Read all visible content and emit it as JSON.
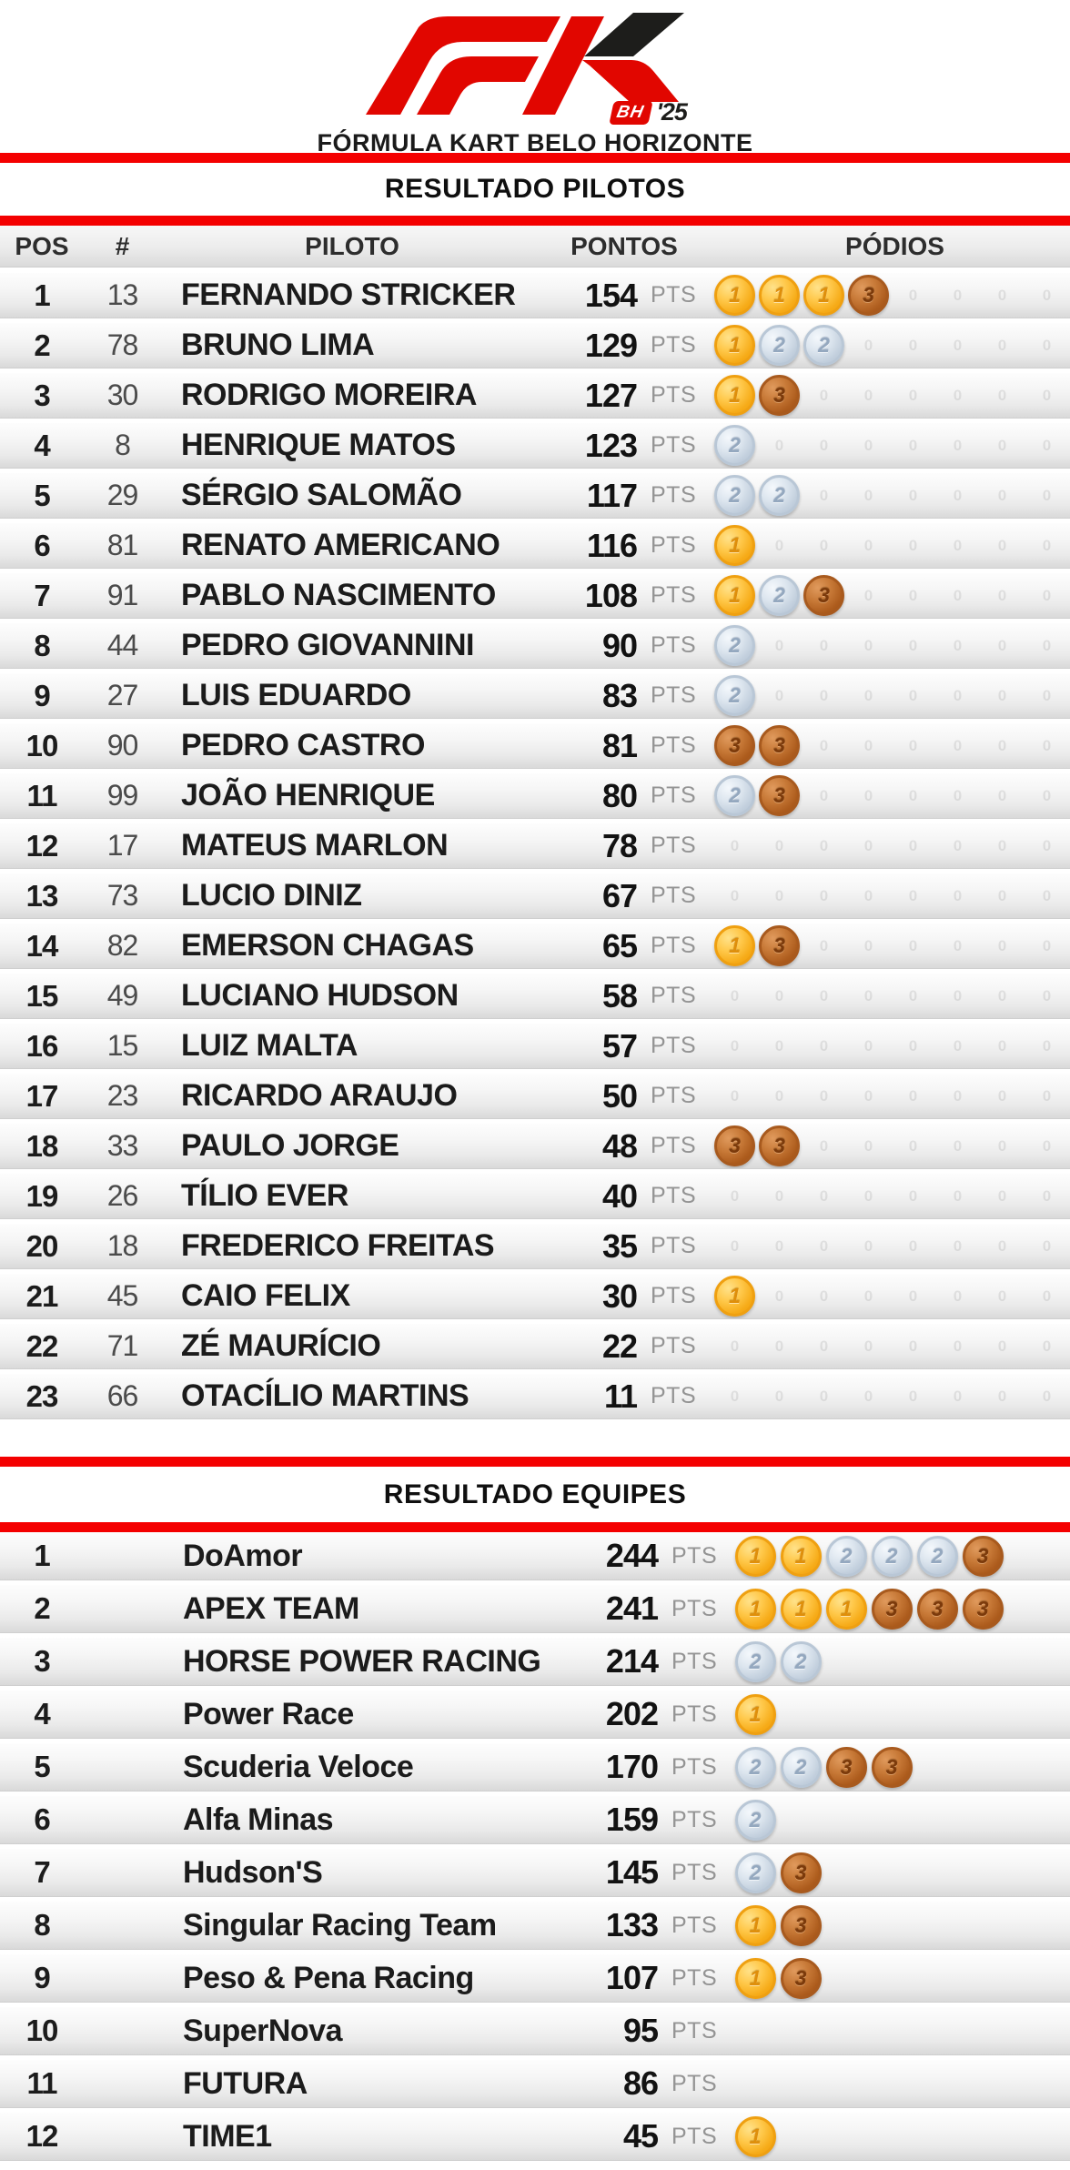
{
  "logo": {
    "bh_badge": "BH",
    "year": "'25",
    "wordmark": "FÓRMULA KART BELO HORIZONTE"
  },
  "colors": {
    "accent_red": "#F40000",
    "logo_red": "#E10600",
    "logo_black": "#1D1D1B",
    "gold": "#F6AB18",
    "silver": "#C2CFDD",
    "bronze": "#AD5C1D"
  },
  "pilots": {
    "title": "RESULTADO PILOTOS",
    "columns": {
      "pos": "POS",
      "num": "#",
      "name": "PILOTO",
      "points": "PONTOS",
      "podiums": "PÓDIOS"
    },
    "pts_label": "PTS",
    "podium_slots": 8,
    "ghost_glyph": "0",
    "rows": [
      {
        "pos": "1",
        "num": "13",
        "name": "FERNANDO STRICKER",
        "points": "154",
        "medals": [
          1,
          1,
          1,
          3
        ]
      },
      {
        "pos": "2",
        "num": "78",
        "name": "BRUNO LIMA",
        "points": "129",
        "medals": [
          1,
          2,
          2
        ]
      },
      {
        "pos": "3",
        "num": "30",
        "name": "RODRIGO MOREIRA",
        "points": "127",
        "medals": [
          1,
          3
        ]
      },
      {
        "pos": "4",
        "num": "8",
        "name": "HENRIQUE MATOS",
        "points": "123",
        "medals": [
          2
        ]
      },
      {
        "pos": "5",
        "num": "29",
        "name": "SÉRGIO SALOMÃO",
        "points": "117",
        "medals": [
          2,
          2
        ]
      },
      {
        "pos": "6",
        "num": "81",
        "name": "RENATO AMERICANO",
        "points": "116",
        "medals": [
          1
        ]
      },
      {
        "pos": "7",
        "num": "91",
        "name": "PABLO NASCIMENTO",
        "points": "108",
        "medals": [
          1,
          2,
          3
        ]
      },
      {
        "pos": "8",
        "num": "44",
        "name": "PEDRO GIOVANNINI",
        "points": "90",
        "medals": [
          2
        ]
      },
      {
        "pos": "9",
        "num": "27",
        "name": "LUIS EDUARDO",
        "points": "83",
        "medals": [
          2
        ]
      },
      {
        "pos": "10",
        "num": "90",
        "name": "PEDRO CASTRO",
        "points": "81",
        "medals": [
          3,
          3
        ]
      },
      {
        "pos": "11",
        "num": "99",
        "name": "JOÃO HENRIQUE",
        "points": "80",
        "medals": [
          2,
          3
        ]
      },
      {
        "pos": "12",
        "num": "17",
        "name": "MATEUS MARLON",
        "points": "78",
        "medals": []
      },
      {
        "pos": "13",
        "num": "73",
        "name": "LUCIO DINIZ",
        "points": "67",
        "medals": []
      },
      {
        "pos": "14",
        "num": "82",
        "name": "EMERSON CHAGAS",
        "points": "65",
        "medals": [
          1,
          3
        ]
      },
      {
        "pos": "15",
        "num": "49",
        "name": "LUCIANO HUDSON",
        "points": "58",
        "medals": []
      },
      {
        "pos": "16",
        "num": "15",
        "name": "LUIZ MALTA",
        "points": "57",
        "medals": []
      },
      {
        "pos": "17",
        "num": "23",
        "name": "RICARDO ARAUJO",
        "points": "50",
        "medals": []
      },
      {
        "pos": "18",
        "num": "33",
        "name": "PAULO JORGE",
        "points": "48",
        "medals": [
          3,
          3
        ]
      },
      {
        "pos": "19",
        "num": "26",
        "name": "TÍLIO EVER",
        "points": "40",
        "medals": []
      },
      {
        "pos": "20",
        "num": "18",
        "name": "FREDERICO FREITAS",
        "points": "35",
        "medals": []
      },
      {
        "pos": "21",
        "num": "45",
        "name": "CAIO FELIX",
        "points": "30",
        "medals": [
          1
        ]
      },
      {
        "pos": "22",
        "num": "71",
        "name": "ZÉ MAURÍCIO",
        "points": "22",
        "medals": []
      },
      {
        "pos": "23",
        "num": "66",
        "name": "OTACÍLIO MARTINS",
        "points": "11",
        "medals": []
      }
    ]
  },
  "teams": {
    "title": "RESULTADO EQUIPES",
    "pts_label": "PTS",
    "rows": [
      {
        "pos": "1",
        "name": "DoAmor",
        "points": "244",
        "medals": [
          1,
          1,
          2,
          2,
          2,
          3
        ]
      },
      {
        "pos": "2",
        "name": "APEX TEAM",
        "points": "241",
        "medals": [
          1,
          1,
          1,
          3,
          3,
          3
        ]
      },
      {
        "pos": "3",
        "name": "HORSE POWER RACING",
        "points": "214",
        "medals": [
          2,
          2
        ]
      },
      {
        "pos": "4",
        "name": "Power Race",
        "points": "202",
        "medals": [
          1
        ]
      },
      {
        "pos": "5",
        "name": "Scuderia Veloce",
        "points": "170",
        "medals": [
          2,
          2,
          3,
          3
        ]
      },
      {
        "pos": "6",
        "name": "Alfa Minas",
        "points": "159",
        "medals": [
          2
        ]
      },
      {
        "pos": "7",
        "name": "Hudson'S",
        "points": "145",
        "medals": [
          2,
          3
        ]
      },
      {
        "pos": "8",
        "name": "Singular Racing Team",
        "points": "133",
        "medals": [
          1,
          3
        ]
      },
      {
        "pos": "9",
        "name": "Peso & Pena Racing",
        "points": "107",
        "medals": [
          1,
          3
        ]
      },
      {
        "pos": "10",
        "name": "SuperNova",
        "points": "95",
        "medals": []
      },
      {
        "pos": "11",
        "name": "FUTURA",
        "points": "86",
        "medals": []
      },
      {
        "pos": "12",
        "name": "TIME1",
        "points": "45",
        "medals": [
          1
        ]
      }
    ]
  }
}
